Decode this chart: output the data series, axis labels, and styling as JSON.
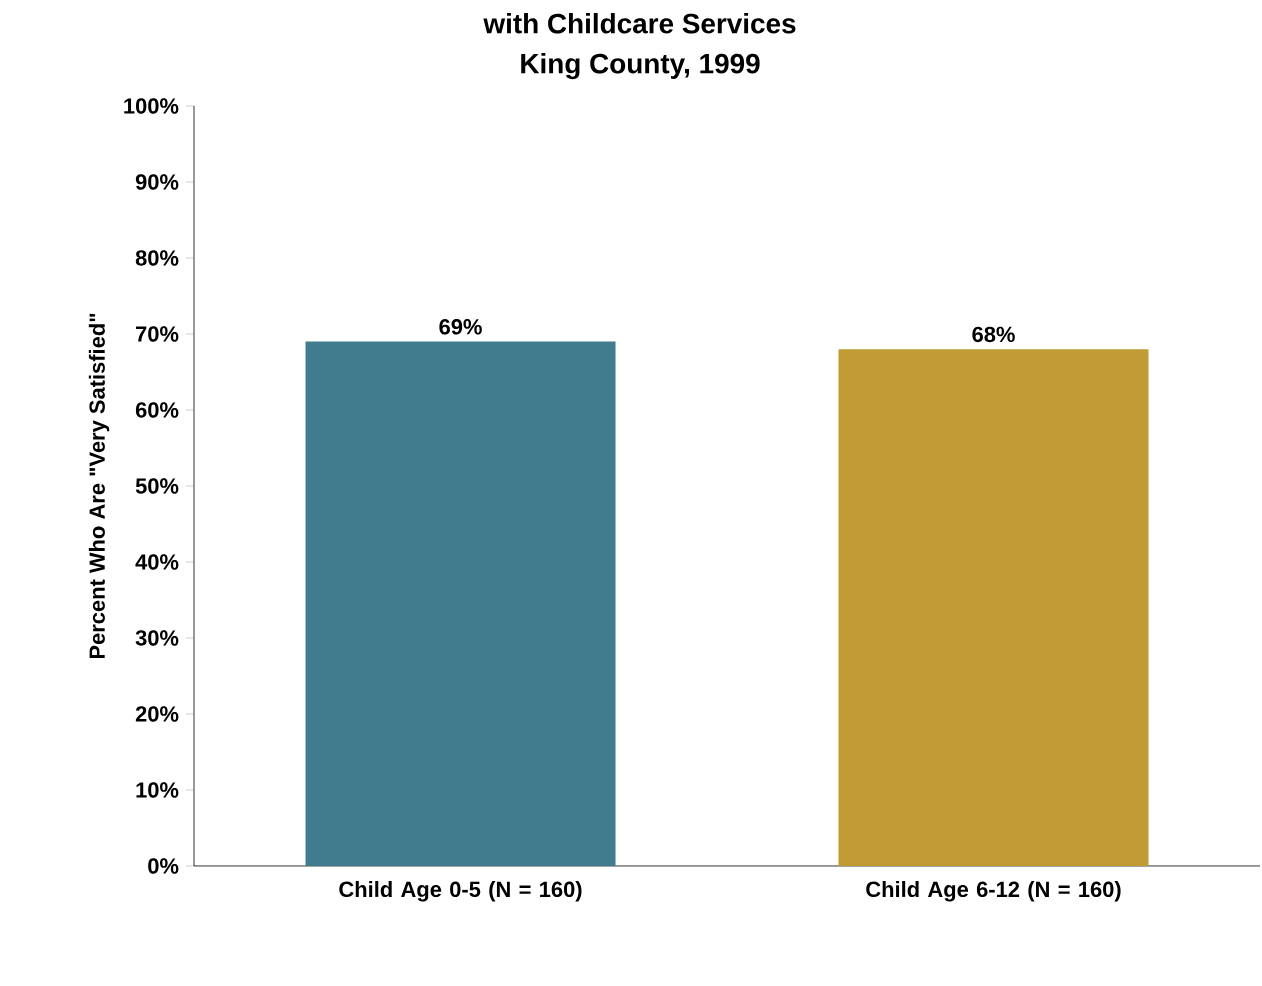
{
  "chart_data": {
    "type": "bar",
    "title": "with Childcare Services",
    "subtitle": "King County, 1999",
    "ylabel": "Percent Who Are \"Very Satisfied\"",
    "categories": [
      "Child Age 0-5 (N = 160)",
      "Child Age 6-12 (N = 160)"
    ],
    "values": [
      69,
      68
    ],
    "colors": [
      "#417b8e",
      "#c19b33"
    ],
    "value_labels": [
      "69%",
      "68%"
    ],
    "ylim": [
      0,
      100
    ],
    "yticks": [
      {
        "value": 0,
        "label": "0%"
      },
      {
        "value": 10,
        "label": "10%"
      },
      {
        "value": 20,
        "label": "20%"
      },
      {
        "value": 30,
        "label": "30%"
      },
      {
        "value": 40,
        "label": "40%"
      },
      {
        "value": 50,
        "label": "50%"
      },
      {
        "value": 60,
        "label": "60%"
      },
      {
        "value": 70,
        "label": "70%"
      },
      {
        "value": 80,
        "label": "80%"
      },
      {
        "value": 90,
        "label": "90%"
      },
      {
        "value": 100,
        "label": "100%"
      }
    ]
  }
}
